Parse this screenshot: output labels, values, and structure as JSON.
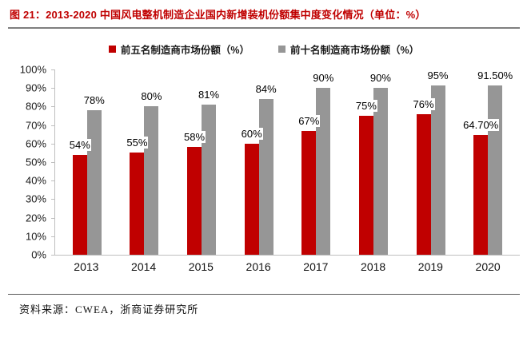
{
  "title": "图 21：2013-2020 中国风电整机制造企业国内新增装机份额集中度变化情况（单位：%）",
  "source": "资料来源：CWEA，浙商证券研究所",
  "colors": {
    "title_red": "#C00000",
    "series_red": "#C00000",
    "series_gray": "#969696",
    "axis_line": "#BFBFBF",
    "divider_gray": "#7F7F7F"
  },
  "chart_data": {
    "type": "bar",
    "categories": [
      "2013",
      "2014",
      "2015",
      "2016",
      "2017",
      "2018",
      "2019",
      "2020"
    ],
    "series": [
      {
        "name": "前五名制造商市场份额（%）",
        "color": "#C00000",
        "values": [
          54,
          55,
          58,
          60,
          67,
          75,
          76,
          64.7
        ],
        "labels": [
          "54%",
          "55%",
          "58%",
          "60%",
          "67%",
          "75%",
          "76%",
          "64.70%"
        ]
      },
      {
        "name": "前十名制造商市场份额（%）",
        "color": "#969696",
        "values": [
          78,
          80,
          81,
          84,
          90,
          90,
          95,
          91.5
        ],
        "labels": [
          "78%",
          "80%",
          "81%",
          "84%",
          "90%",
          "90%",
          "95%",
          "91.50%"
        ]
      }
    ],
    "title": "2013-2020 中国风电整机制造企业国内新增装机份额集中度变化情况",
    "xlabel": "",
    "ylabel": "",
    "ylim": [
      0,
      100
    ],
    "yticks": [
      "100%",
      "90%",
      "80%",
      "70%",
      "60%",
      "50%",
      "40%",
      "30%",
      "20%",
      "10%",
      "0%"
    ],
    "grid": false,
    "legend_position": "top"
  }
}
